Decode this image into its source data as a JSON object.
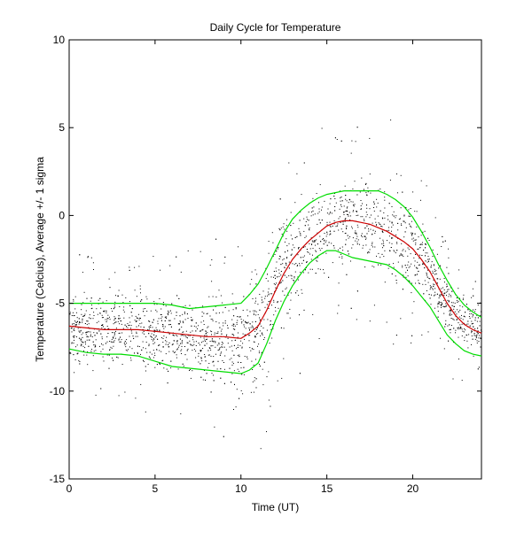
{
  "chart_data": {
    "type": "line",
    "title": "Daily Cycle for Temperature",
    "xlabel": "Time (UT)",
    "ylabel": "Temperature (Celcius), Average +/- 1 sigma",
    "xlim": [
      0,
      24
    ],
    "ylim": [
      -15,
      10
    ],
    "xticks": [
      0,
      5,
      10,
      15,
      20
    ],
    "yticks": [
      -15,
      -10,
      -5,
      0,
      5,
      10
    ],
    "grid": false,
    "series": [
      {
        "name": "Average",
        "color": "#cc0000",
        "x": [
          0,
          1,
          2,
          3,
          4,
          5,
          6,
          7,
          8,
          9,
          10,
          10.5,
          11,
          11.5,
          12,
          12.5,
          13,
          13.5,
          14,
          14.5,
          15,
          15.5,
          16,
          16.5,
          17,
          17.5,
          18,
          18.5,
          19,
          19.5,
          20,
          20.5,
          21,
          21.5,
          22,
          22.5,
          23,
          23.5,
          24
        ],
        "values": [
          -6.3,
          -6.4,
          -6.5,
          -6.5,
          -6.5,
          -6.6,
          -6.7,
          -6.8,
          -6.9,
          -6.9,
          -7.0,
          -6.7,
          -6.3,
          -5.4,
          -4.3,
          -3.3,
          -2.5,
          -1.9,
          -1.4,
          -1.0,
          -0.6,
          -0.4,
          -0.3,
          -0.3,
          -0.4,
          -0.5,
          -0.7,
          -0.9,
          -1.2,
          -1.5,
          -1.9,
          -2.5,
          -3.2,
          -4.1,
          -5.0,
          -5.7,
          -6.2,
          -6.5,
          -6.7
        ]
      },
      {
        "name": "Average + 1 sigma",
        "color": "#00dd00",
        "x": [
          0,
          1,
          2,
          3,
          4,
          5,
          6,
          7,
          8,
          9,
          10,
          10.5,
          11,
          11.5,
          12,
          12.5,
          13,
          13.5,
          14,
          14.5,
          15,
          15.5,
          16,
          16.5,
          17,
          17.5,
          18,
          18.5,
          19,
          19.5,
          20,
          20.5,
          21,
          21.5,
          22,
          22.5,
          23,
          23.5,
          24
        ],
        "values": [
          -5.0,
          -5.0,
          -5.0,
          -5.0,
          -5.0,
          -5.0,
          -5.1,
          -5.3,
          -5.2,
          -5.1,
          -5.0,
          -4.5,
          -3.9,
          -3.0,
          -2.0,
          -1.0,
          -0.2,
          0.3,
          0.7,
          1.0,
          1.2,
          1.3,
          1.4,
          1.4,
          1.4,
          1.4,
          1.4,
          1.2,
          0.9,
          0.5,
          -0.1,
          -0.9,
          -1.8,
          -2.8,
          -3.7,
          -4.5,
          -5.1,
          -5.5,
          -5.8
        ]
      },
      {
        "name": "Average - 1 sigma",
        "color": "#00dd00",
        "x": [
          0,
          1,
          2,
          3,
          4,
          5,
          6,
          7,
          8,
          9,
          10,
          10.5,
          11,
          11.5,
          12,
          12.5,
          13,
          13.5,
          14,
          14.5,
          15,
          15.5,
          16,
          16.5,
          17,
          17.5,
          18,
          18.5,
          19,
          19.5,
          20,
          20.5,
          21,
          21.5,
          22,
          22.5,
          23,
          23.5,
          24
        ],
        "values": [
          -7.6,
          -7.8,
          -7.9,
          -7.9,
          -8.0,
          -8.3,
          -8.6,
          -8.7,
          -8.8,
          -8.9,
          -9.0,
          -8.8,
          -8.4,
          -7.3,
          -6.0,
          -4.9,
          -4.0,
          -3.3,
          -2.7,
          -2.3,
          -2.0,
          -2.0,
          -2.2,
          -2.4,
          -2.5,
          -2.6,
          -2.7,
          -2.8,
          -3.1,
          -3.5,
          -4.0,
          -4.6,
          -5.2,
          -6.0,
          -6.8,
          -7.3,
          -7.7,
          -7.9,
          -8.0
        ]
      }
    ],
    "scatter": {
      "name": "Observations",
      "color": "#000000",
      "note": "Dense black dots spread about the mean curve, roughly 2 sigma wide, with a few warmer outliers up to about 4.5 C near 17-19 UT and colder ones down to about -11 C near 9-10 UT.",
      "approx_upper_envelope": [
        [
          0,
          -3.3
        ],
        [
          5,
          -3.3
        ],
        [
          10,
          -3.8
        ],
        [
          12,
          -1.0
        ],
        [
          15,
          3.0
        ],
        [
          17,
          4.5
        ],
        [
          19,
          4.0
        ],
        [
          21,
          1.0
        ],
        [
          23,
          -3.5
        ],
        [
          24,
          -4.0
        ]
      ],
      "approx_lower_envelope": [
        [
          0,
          -9.0
        ],
        [
          5,
          -9.6
        ],
        [
          9,
          -10.6
        ],
        [
          11,
          -9.5
        ],
        [
          13,
          -5.0
        ],
        [
          15,
          -4.2
        ],
        [
          19,
          -4.1
        ],
        [
          21,
          -5.5
        ],
        [
          23,
          -8.0
        ],
        [
          24,
          -8.7
        ]
      ]
    }
  }
}
